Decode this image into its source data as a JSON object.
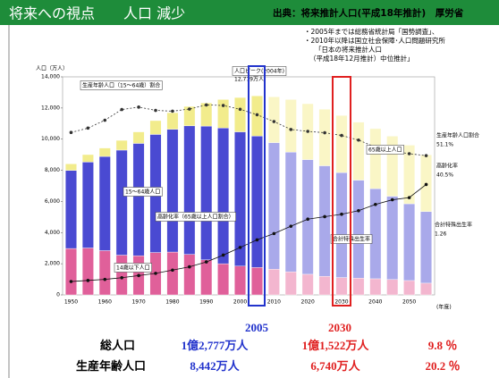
{
  "header": {
    "title": "将来への視点　　人口 減少",
    "source": "出典：将来推計人口(平成18年推計)　厚労省",
    "notes": [
      "・2005年までは総務省統計局「国勢調査」、",
      "・2010年以降は国立社会保障･人口問題研究所",
      "「日本の将来推計人口",
      "（平成18年12月推計）中位推計」"
    ]
  },
  "chart_data": {
    "type": "bar",
    "stacked": true,
    "y_label": "人口（万人）",
    "x_label": "(年度)",
    "categories": [
      "1950",
      null,
      "1960",
      null,
      "1970",
      null,
      "1980",
      null,
      "1990",
      null,
      "2000",
      null,
      "2010",
      null,
      "2020",
      null,
      "2030",
      null,
      "2040",
      null,
      "2050",
      null
    ],
    "ylim": [
      0,
      14000
    ],
    "yticks": [
      0,
      {
        "value": 2000,
        "label": "2,000"
      },
      {
        "value": 4000,
        "label": "4,000"
      },
      {
        "value": 6000,
        "label": "6,000"
      },
      {
        "value": 8000,
        "label": "8,000"
      },
      {
        "value": 10000,
        "label": "10,000"
      },
      {
        "value": 12000,
        "label": "12,000"
      },
      {
        "value": 14000,
        "label": "14,000"
      }
    ],
    "y2lim": [
      0,
      80
    ],
    "series": [
      {
        "name": "14歳以下人口",
        "colors": [
          "#e0609a",
          "#e0609a",
          "#e0609a",
          "#e0609a",
          "#e0609a",
          "#e0609a",
          "#e0609a",
          "#e0609a",
          "#e0609a",
          "#e0609a",
          "#e0609a",
          "#e0609a",
          "#f3b6cf",
          "#f3b6cf",
          "#f3b6cf",
          "#f3b6cf",
          "#f3b6cf",
          "#f3b6cf",
          "#f3b6cf",
          "#f3b6cf",
          "#f3b6cf",
          "#f3b6cf"
        ],
        "values": [
          2979,
          3012,
          2843,
          2553,
          2515,
          2722,
          2751,
          2603,
          2249,
          2001,
          1847,
          1759,
          1648,
          1484,
          1324,
          1194,
          1115,
          1077,
          1036,
          986,
          921,
          752
        ]
      },
      {
        "name": "15～64歳人口",
        "colors": [
          "#4a4ad2",
          "#4a4ad2",
          "#4a4ad2",
          "#4a4ad2",
          "#4a4ad2",
          "#4a4ad2",
          "#4a4ad2",
          "#4a4ad2",
          "#4a4ad2",
          "#4a4ad2",
          "#4a4ad2",
          "#4a4ad2",
          "#a9a9ea",
          "#a9a9ea",
          "#a9a9ea",
          "#a9a9ea",
          "#a9a9ea",
          "#a9a9ea",
          "#a9a9ea",
          "#a9a9ea",
          "#a9a9ea",
          "#a9a9ea"
        ],
        "values": [
          5017,
          5517,
          6047,
          6744,
          7212,
          7581,
          7883,
          8251,
          8590,
          8717,
          8622,
          8442,
          8128,
          7681,
          7363,
          7096,
          6740,
          6292,
          5787,
          5350,
          4930,
          4595
        ]
      },
      {
        "name": "65歳以上人口",
        "colors": [
          "#f2ec8c",
          "#f2ec8c",
          "#f2ec8c",
          "#f2ec8c",
          "#f2ec8c",
          "#f2ec8c",
          "#f2ec8c",
          "#f2ec8c",
          "#f2ec8c",
          "#f2ec8c",
          "#f2ec8c",
          "#f2ec8c",
          "#faf6c6",
          "#faf6c6",
          "#faf6c6",
          "#faf6c6",
          "#faf6c6",
          "#faf6c6",
          "#faf6c6",
          "#faf6c6",
          "#faf6c6",
          "#faf6c6"
        ],
        "values": [
          416,
          479,
          540,
          624,
          739,
          887,
          1065,
          1247,
          1489,
          1826,
          2204,
          2576,
          2941,
          3378,
          3590,
          3635,
          3667,
          3725,
          3853,
          3856,
          3764,
          3646
        ]
      },
      {
        "name": "生産年齢人口割合",
        "type": "line",
        "axis": "y2",
        "color": "#333333",
        "values": [
          59.6,
          61.2,
          64.1,
          68.0,
          68.9,
          67.7,
          67.4,
          68.2,
          69.7,
          69.5,
          68.1,
          66.1,
          63.6,
          60.7,
          60.0,
          59.5,
          58.5,
          56.8,
          54.2,
          52.8,
          51.8,
          51.1
        ]
      },
      {
        "name": "高齢化率",
        "type": "line",
        "axis": "y2",
        "color": "#111111",
        "values": [
          4.9,
          5.3,
          5.7,
          6.3,
          7.1,
          7.9,
          9.1,
          10.3,
          12.1,
          14.6,
          17.4,
          20.2,
          22.5,
          25.2,
          27.8,
          28.7,
          29.6,
          30.9,
          33.2,
          34.9,
          35.7,
          40.5
        ]
      }
    ],
    "annotations": [
      "生産年齢人口（15～64歳）割合",
      "人口ピーク(2004年)",
      "12,779万人",
      "15～64歳人口",
      "高齢化率（65歳以上人口割合）",
      "65歳以上人口",
      "合計特殊出生率",
      "14歳以下人口",
      "生産年齢人口割合",
      "51.1%",
      "高齢化率",
      "40.5%",
      "合計特殊出生率",
      "1.26"
    ]
  },
  "summary": {
    "years": [
      "2005",
      "2030"
    ],
    "rows": [
      {
        "label": "総人口",
        "values": [
          "1億2,777万人",
          "1億1,522万人"
        ],
        "change": "9.8 ％"
      },
      {
        "label": "生産年齢人口",
        "values": [
          "8,442万人",
          "6,740万人"
        ],
        "change": "20.2 ％"
      }
    ]
  }
}
